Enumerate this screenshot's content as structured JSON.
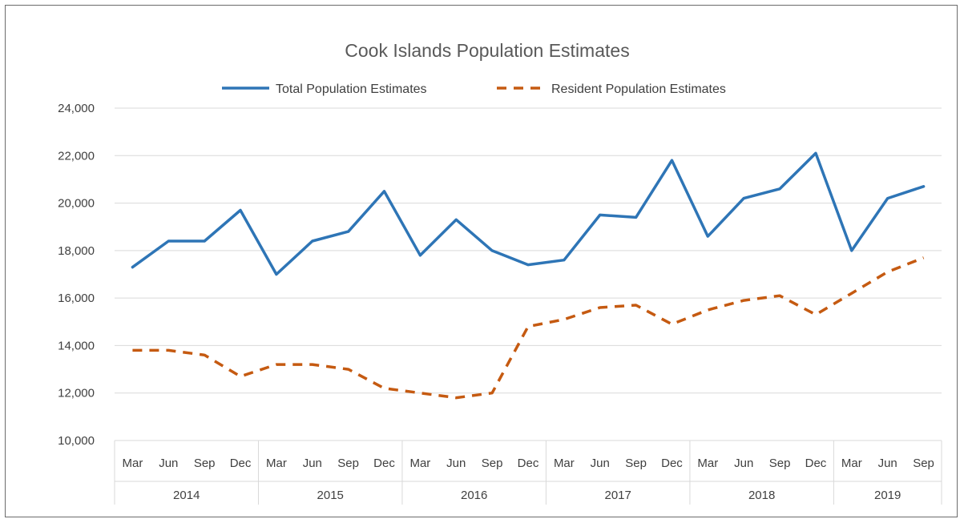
{
  "chart_data": {
    "type": "line",
    "title": "Cook Islands Population Estimates",
    "xlabel": "",
    "ylabel": "",
    "ylim": [
      10000,
      24000
    ],
    "y_ticks": [
      "10,000",
      "12,000",
      "14,000",
      "16,000",
      "18,000",
      "20,000",
      "22,000",
      "24,000"
    ],
    "grid": true,
    "legend_position": "top",
    "categories": [
      "Mar",
      "Jun",
      "Sep",
      "Dec",
      "Mar",
      "Jun",
      "Sep",
      "Dec",
      "Mar",
      "Jun",
      "Sep",
      "Dec",
      "Mar",
      "Jun",
      "Sep",
      "Dec",
      "Mar",
      "Jun",
      "Sep",
      "Dec",
      "Mar",
      "Jun",
      "Sep"
    ],
    "years": [
      {
        "label": "2014",
        "count": 4
      },
      {
        "label": "2015",
        "count": 4
      },
      {
        "label": "2016",
        "count": 4
      },
      {
        "label": "2017",
        "count": 4
      },
      {
        "label": "2018",
        "count": 4
      },
      {
        "label": "2019",
        "count": 3
      }
    ],
    "series": [
      {
        "name": "Total Population Estimates",
        "color": "#2E75B6",
        "style": "solid",
        "values": [
          17300,
          18400,
          18400,
          19700,
          17000,
          18400,
          18800,
          20500,
          17800,
          19300,
          18000,
          17400,
          17600,
          19500,
          19400,
          21800,
          18600,
          20200,
          20600,
          22100,
          18000,
          20200,
          20700
        ]
      },
      {
        "name": "Resident Population Estimates",
        "color": "#C55A11",
        "style": "dashed",
        "values": [
          13800,
          13800,
          13600,
          12700,
          13200,
          13200,
          13000,
          12200,
          12000,
          11800,
          12000,
          14800,
          15100,
          15600,
          15700,
          14900,
          15500,
          15900,
          16100,
          15300,
          16200,
          17100,
          17700
        ]
      }
    ]
  }
}
